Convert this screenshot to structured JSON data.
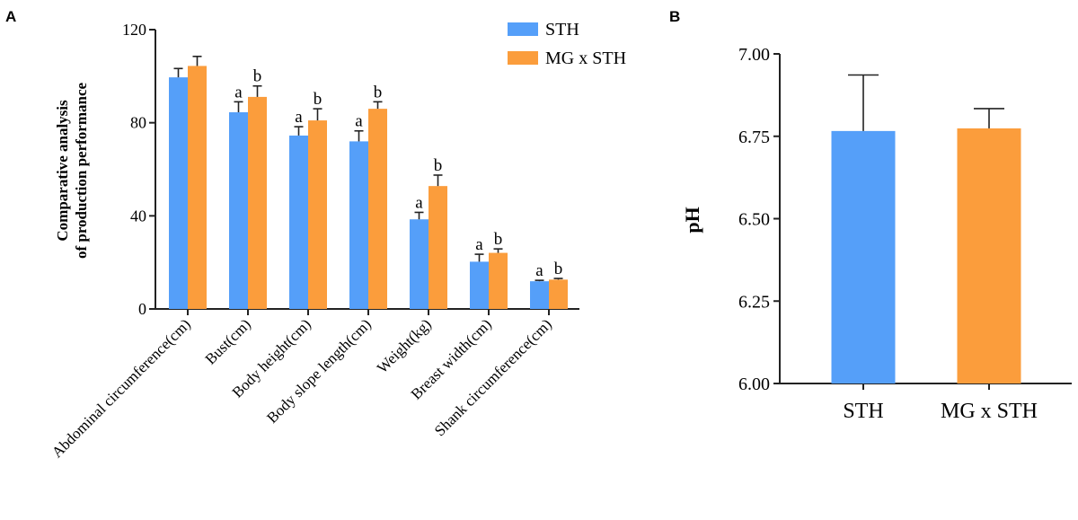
{
  "colors": {
    "STH": "#559ff9",
    "MG x STH": "#fb9d3c",
    "axis": "#222222"
  },
  "chart_data": [
    {
      "panel_label": "A",
      "type": "bar",
      "ylabel_lines": [
        "Comparative analysis",
        "of production performance"
      ],
      "ylim": [
        0,
        120
      ],
      "yticks": [
        0,
        40,
        80,
        120
      ],
      "legend": {
        "placement": "top-right",
        "entries": [
          "STH",
          "MG x STH"
        ]
      },
      "categories": [
        "Abdominal circumference(cm)",
        "Bust(cm)",
        "Body height(cm)",
        "Body slope length(cm)",
        "Weight(kg)",
        "Breast width(cm)",
        "Shank circumference(cm)"
      ],
      "series": [
        {
          "name": "STH",
          "values": [
            99.5,
            84.5,
            74.5,
            72,
            38.5,
            20.3,
            11.9
          ],
          "errors": [
            3.8,
            4.5,
            3.8,
            4.5,
            3,
            3.2,
            0.4
          ],
          "sig": [
            "",
            "a",
            "a",
            "a",
            "a",
            "a",
            "a"
          ]
        },
        {
          "name": "MG x STH",
          "values": [
            104.4,
            91.1,
            81,
            86,
            52.8,
            24.1,
            12.6
          ],
          "errors": [
            4.1,
            4.7,
            5,
            3,
            4.7,
            1.7,
            0.5
          ],
          "sig": [
            "",
            "b",
            "b",
            "b",
            "b",
            "b",
            "b"
          ]
        }
      ],
      "grid": false
    },
    {
      "panel_label": "B",
      "type": "bar",
      "ylabel": "pH",
      "ylim": [
        6.0,
        7.0
      ],
      "yticks": [
        "6.00",
        "6.25",
        "6.50",
        "6.75",
        "7.00"
      ],
      "categories": [
        "STH",
        "MG x STH"
      ],
      "values": [
        6.766,
        6.774
      ],
      "errors": [
        0.17,
        0.06
      ],
      "grid": false
    }
  ]
}
